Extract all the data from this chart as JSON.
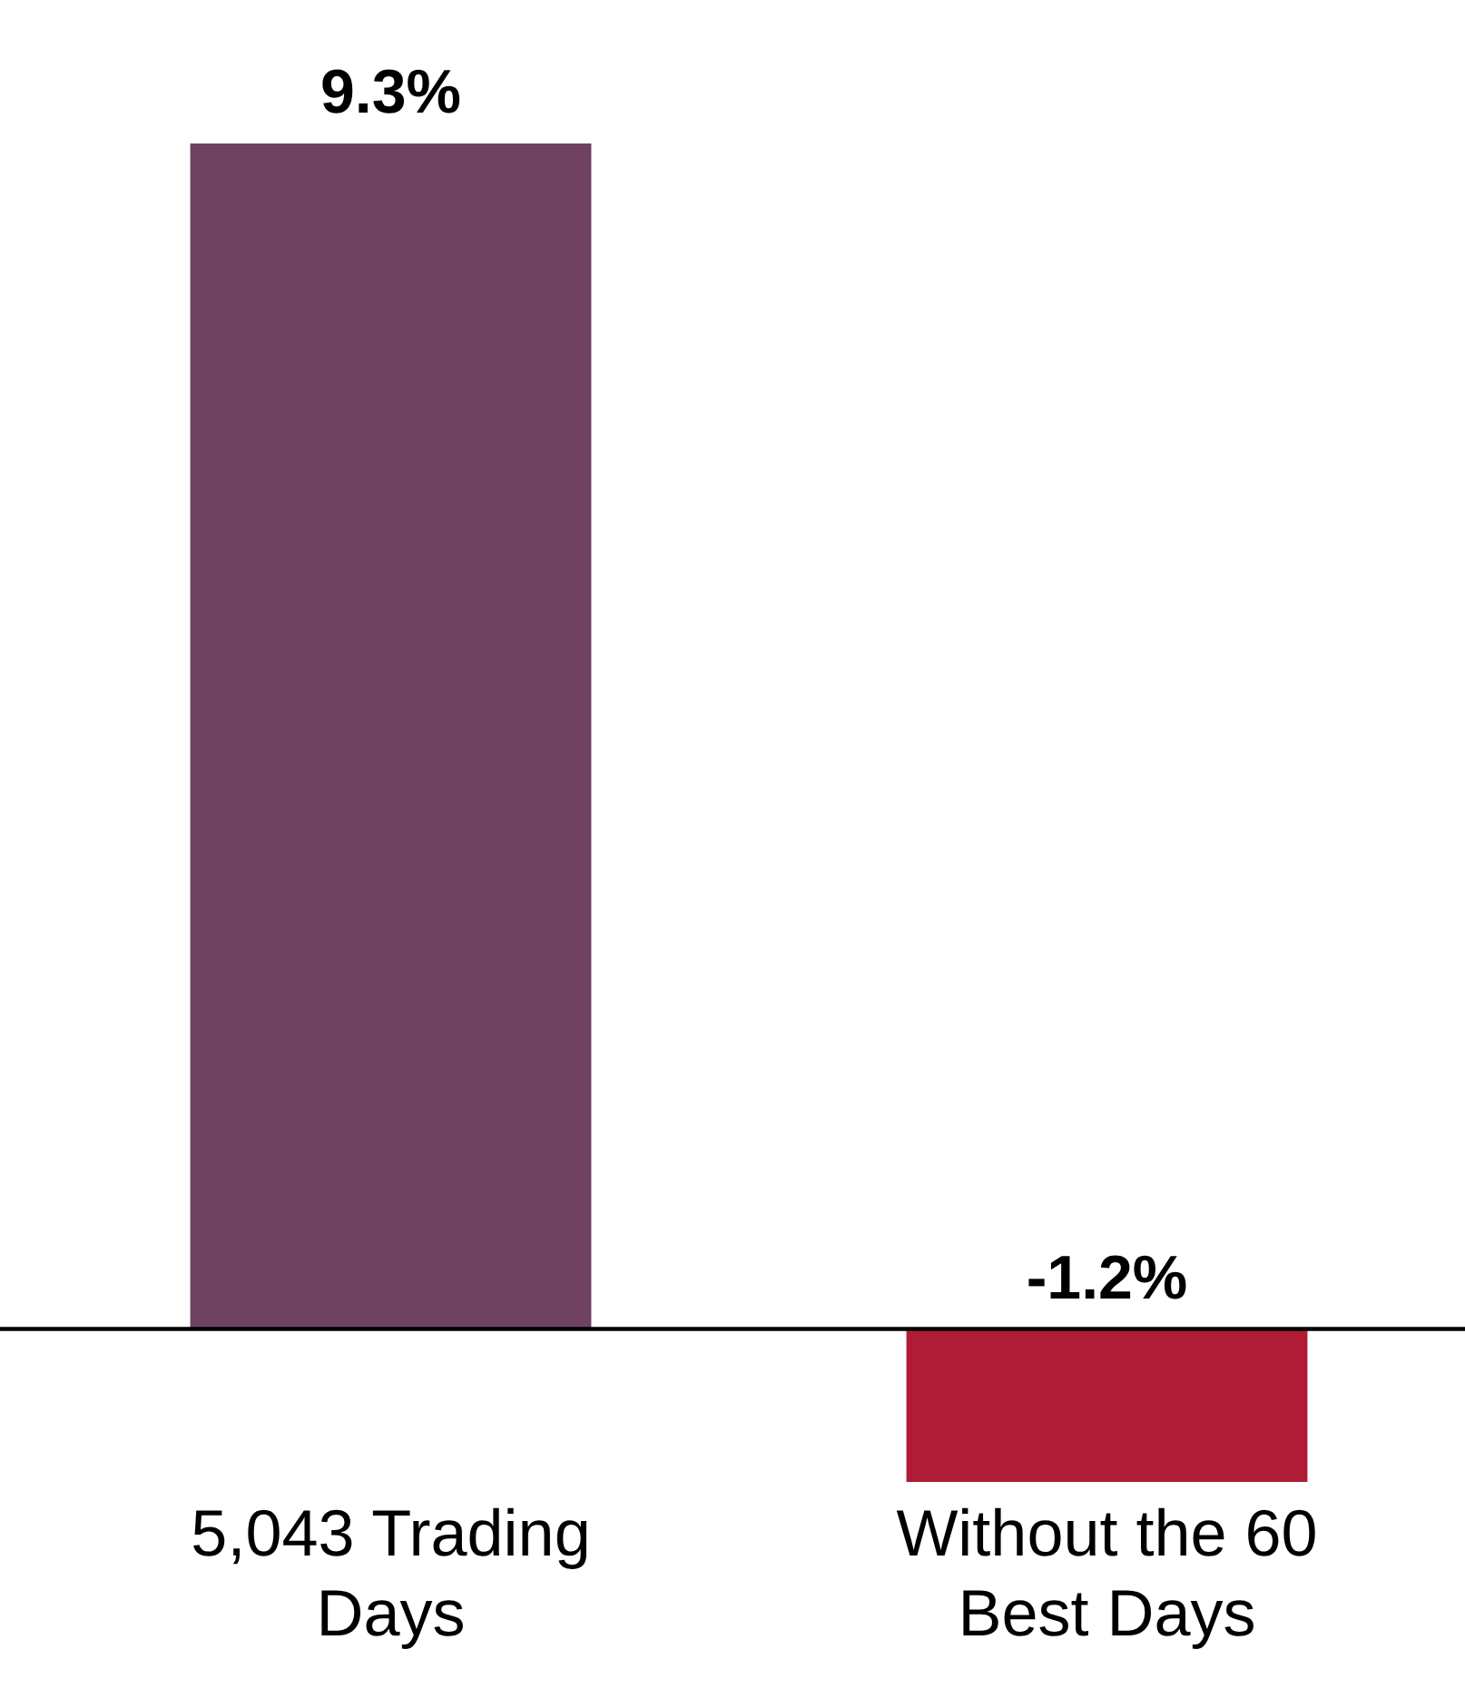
{
  "chart_data": {
    "type": "bar",
    "categories": [
      "5,043  Trading\nDays",
      "Without the 60\nBest Days"
    ],
    "values": [
      9.3,
      -1.2
    ],
    "colors": [
      "#6f4262",
      "#b01c36"
    ],
    "value_labels": [
      "9.3%",
      "-1.2%"
    ],
    "grid": false
  }
}
